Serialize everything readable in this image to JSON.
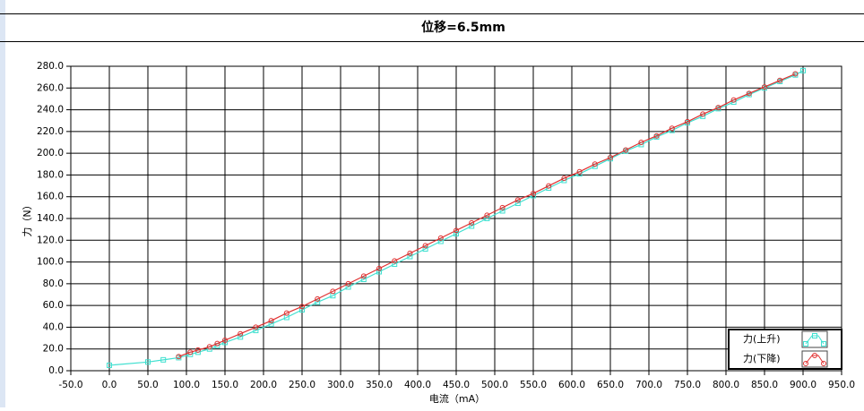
{
  "chart_data": {
    "type": "line",
    "title": "位移=6.5mm",
    "x_label": "电流（mA）",
    "y_label": "力（N）",
    "xlim": [
      -50,
      950
    ],
    "ylim": [
      0,
      280
    ],
    "grid": true,
    "legend": "lower right",
    "xticks": [
      {
        "value": -50,
        "label": "-50.0"
      },
      {
        "value": 0,
        "label": "0.0"
      },
      {
        "value": 50,
        "label": "50.0"
      },
      {
        "value": 100,
        "label": "100.0"
      },
      {
        "value": 150,
        "label": "150.0"
      },
      {
        "value": 200,
        "label": "200.0"
      },
      {
        "value": 250,
        "label": "250.0"
      },
      {
        "value": 300,
        "label": "300.0"
      },
      {
        "value": 350,
        "label": "350.0"
      },
      {
        "value": 400,
        "label": "400.0"
      },
      {
        "value": 450,
        "label": "450.0"
      },
      {
        "value": 500,
        "label": "500.0"
      },
      {
        "value": 550,
        "label": "550.0"
      },
      {
        "value": 600,
        "label": "600.0"
      },
      {
        "value": 650,
        "label": "650.0"
      },
      {
        "value": 700,
        "label": "700.0"
      },
      {
        "value": 750,
        "label": "750.0"
      },
      {
        "value": 800,
        "label": "800.0"
      },
      {
        "value": 850,
        "label": "850.0"
      },
      {
        "value": 900,
        "label": "900.0"
      },
      {
        "value": 950,
        "label": "950.0"
      }
    ],
    "yticks": [
      {
        "value": 0,
        "label": "0.0"
      },
      {
        "value": 20,
        "label": "20.0"
      },
      {
        "value": 40,
        "label": "40.0"
      },
      {
        "value": 60,
        "label": "60.0"
      },
      {
        "value": 80,
        "label": "80.0"
      },
      {
        "value": 100,
        "label": "100.0"
      },
      {
        "value": 120,
        "label": "120.0"
      },
      {
        "value": 140,
        "label": "140.0"
      },
      {
        "value": 160,
        "label": "160.0"
      },
      {
        "value": 180,
        "label": "180.0"
      },
      {
        "value": 200,
        "label": "200.0"
      },
      {
        "value": 220,
        "label": "220.0"
      },
      {
        "value": 240,
        "label": "240.0"
      },
      {
        "value": 260,
        "label": "260.0"
      },
      {
        "value": 280,
        "label": "280.0"
      }
    ],
    "series": [
      {
        "name": "力(上升)",
        "color": "#40e0d0",
        "marker": "square",
        "x": [
          0,
          50,
          70,
          90,
          105,
          115,
          130,
          140,
          150,
          170,
          190,
          210,
          230,
          250,
          270,
          290,
          310,
          330,
          350,
          370,
          390,
          410,
          430,
          450,
          470,
          490,
          510,
          530,
          550,
          570,
          590,
          610,
          630,
          650,
          670,
          690,
          710,
          730,
          750,
          770,
          790,
          810,
          830,
          850,
          870,
          890,
          900
        ],
        "values": [
          5,
          8,
          10,
          12,
          15,
          17,
          20,
          23,
          26,
          31,
          37,
          43,
          49,
          56,
          63,
          69,
          77,
          84,
          91,
          98,
          105,
          112,
          119,
          126,
          133,
          140,
          147,
          154,
          161,
          168,
          175,
          181,
          188,
          195,
          202,
          208,
          215,
          221,
          228,
          234,
          241,
          247,
          254,
          260,
          266,
          272,
          276
        ]
      },
      {
        "name": "力(下降)",
        "color": "#e03030",
        "marker": "circle",
        "x": [
          90,
          105,
          115,
          130,
          140,
          150,
          170,
          190,
          210,
          230,
          250,
          270,
          290,
          310,
          330,
          350,
          370,
          390,
          410,
          430,
          450,
          470,
          490,
          510,
          530,
          550,
          570,
          590,
          610,
          630,
          650,
          670,
          690,
          710,
          730,
          750,
          770,
          790,
          810,
          830,
          850,
          870,
          890
        ],
        "values": [
          13,
          17,
          19,
          22,
          25,
          28,
          34,
          40,
          46,
          53,
          59,
          66,
          73,
          80,
          87,
          94,
          101,
          108,
          115,
          122,
          129,
          136,
          143,
          150,
          157,
          163,
          170,
          177,
          183,
          190,
          196,
          203,
          210,
          216,
          223,
          229,
          236,
          242,
          249,
          255,
          261,
          267,
          273
        ]
      }
    ]
  }
}
